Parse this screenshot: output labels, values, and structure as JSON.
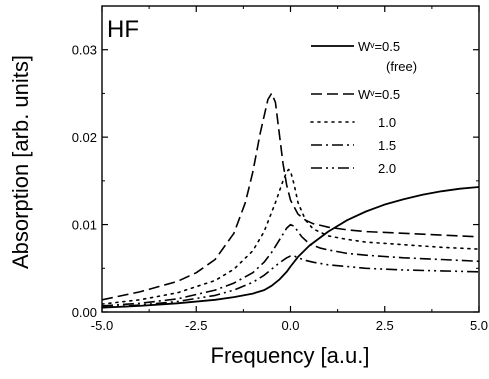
{
  "chart_data": {
    "type": "line",
    "panel_label": "HF",
    "xlabel": "Frequency [a.u.]",
    "ylabel": "Absorption [arb. units]",
    "xlim": [
      -5.0,
      5.0
    ],
    "ylim": [
      0.0,
      0.035
    ],
    "xticks": [
      "-5.0",
      "-2.5",
      "0.0",
      "2.5",
      "5.0"
    ],
    "yticks": [
      "0.00",
      "0.01",
      "0.02",
      "0.03"
    ],
    "legend_position": "top-right",
    "legend": [
      {
        "label": "Wᵛ=0.5",
        "sublabel": "(free)",
        "style": "solid"
      },
      {
        "label": "Wᵛ=0.5",
        "sublabel": "",
        "style": "dashed"
      },
      {
        "label": "1.0",
        "sublabel": "",
        "style": "dotted"
      },
      {
        "label": "1.5",
        "sublabel": "",
        "style": "dashdot"
      },
      {
        "label": "2.0",
        "sublabel": "",
        "style": "dashdotdot"
      }
    ],
    "series": [
      {
        "name": "Wᵛ=0.5 (free)",
        "style": "solid",
        "x": [
          -5.0,
          -4.0,
          -3.0,
          -2.0,
          -1.5,
          -1.0,
          -0.7,
          -0.5,
          -0.3,
          -0.1,
          0.0,
          0.2,
          0.5,
          1.0,
          1.5,
          2.0,
          2.5,
          3.0,
          3.5,
          4.0,
          4.5,
          5.0
        ],
        "y": [
          0.0005,
          0.0007,
          0.001,
          0.0014,
          0.0017,
          0.0021,
          0.0025,
          0.003,
          0.0037,
          0.0046,
          0.0052,
          0.0063,
          0.0076,
          0.0092,
          0.0105,
          0.0115,
          0.0123,
          0.0129,
          0.0134,
          0.0138,
          0.0141,
          0.0143
        ]
      },
      {
        "name": "Wᵛ=0.5",
        "style": "dashed",
        "x": [
          -5.0,
          -4.0,
          -3.0,
          -2.5,
          -2.0,
          -1.5,
          -1.2,
          -1.0,
          -0.8,
          -0.6,
          -0.5,
          -0.4,
          -0.3,
          -0.2,
          -0.1,
          0.0,
          0.2,
          0.4,
          0.6,
          0.8,
          1.0,
          1.5,
          2.0,
          3.0,
          4.0,
          5.0
        ],
        "y": [
          0.0014,
          0.0023,
          0.0035,
          0.0045,
          0.006,
          0.009,
          0.0125,
          0.016,
          0.0205,
          0.0243,
          0.025,
          0.024,
          0.0205,
          0.017,
          0.0145,
          0.0128,
          0.0112,
          0.0105,
          0.0101,
          0.0099,
          0.0097,
          0.0094,
          0.0092,
          0.009,
          0.0088,
          0.0086
        ]
      },
      {
        "name": "1.0",
        "style": "dotted",
        "x": [
          -5.0,
          -4.0,
          -3.0,
          -2.0,
          -1.5,
          -1.0,
          -0.7,
          -0.4,
          -0.2,
          -0.1,
          -0.05,
          0.0,
          0.1,
          0.2,
          0.4,
          0.6,
          1.0,
          1.5,
          2.0,
          3.0,
          4.0,
          5.0
        ],
        "y": [
          0.0009,
          0.0014,
          0.0022,
          0.0036,
          0.0049,
          0.007,
          0.0092,
          0.0125,
          0.015,
          0.016,
          0.0163,
          0.0161,
          0.0145,
          0.0125,
          0.0105,
          0.0095,
          0.0087,
          0.0083,
          0.008,
          0.0077,
          0.0074,
          0.0072
        ]
      },
      {
        "name": "1.5",
        "style": "dashdot",
        "x": [
          -5.0,
          -4.0,
          -3.0,
          -2.0,
          -1.5,
          -1.0,
          -0.7,
          -0.5,
          -0.3,
          -0.1,
          0.0,
          0.1,
          0.2,
          0.3,
          0.5,
          0.8,
          1.0,
          1.5,
          2.0,
          3.0,
          4.0,
          5.0
        ],
        "y": [
          0.0007,
          0.001,
          0.0015,
          0.0025,
          0.0033,
          0.0045,
          0.0057,
          0.0068,
          0.0082,
          0.0096,
          0.01,
          0.0098,
          0.0092,
          0.0086,
          0.0078,
          0.0073,
          0.0071,
          0.0067,
          0.0065,
          0.0062,
          0.006,
          0.0058
        ]
      },
      {
        "name": "2.0",
        "style": "dashdotdot",
        "x": [
          -5.0,
          -4.0,
          -3.0,
          -2.0,
          -1.5,
          -1.0,
          -0.7,
          -0.5,
          -0.3,
          -0.1,
          0.0,
          0.1,
          0.2,
          0.4,
          0.6,
          1.0,
          1.5,
          2.0,
          3.0,
          4.0,
          5.0
        ],
        "y": [
          0.0005,
          0.0008,
          0.0012,
          0.0019,
          0.0025,
          0.0034,
          0.0042,
          0.0049,
          0.0056,
          0.0062,
          0.0064,
          0.0064,
          0.0062,
          0.0059,
          0.0057,
          0.0054,
          0.0052,
          0.005,
          0.0048,
          0.0047,
          0.0046
        ]
      }
    ]
  }
}
